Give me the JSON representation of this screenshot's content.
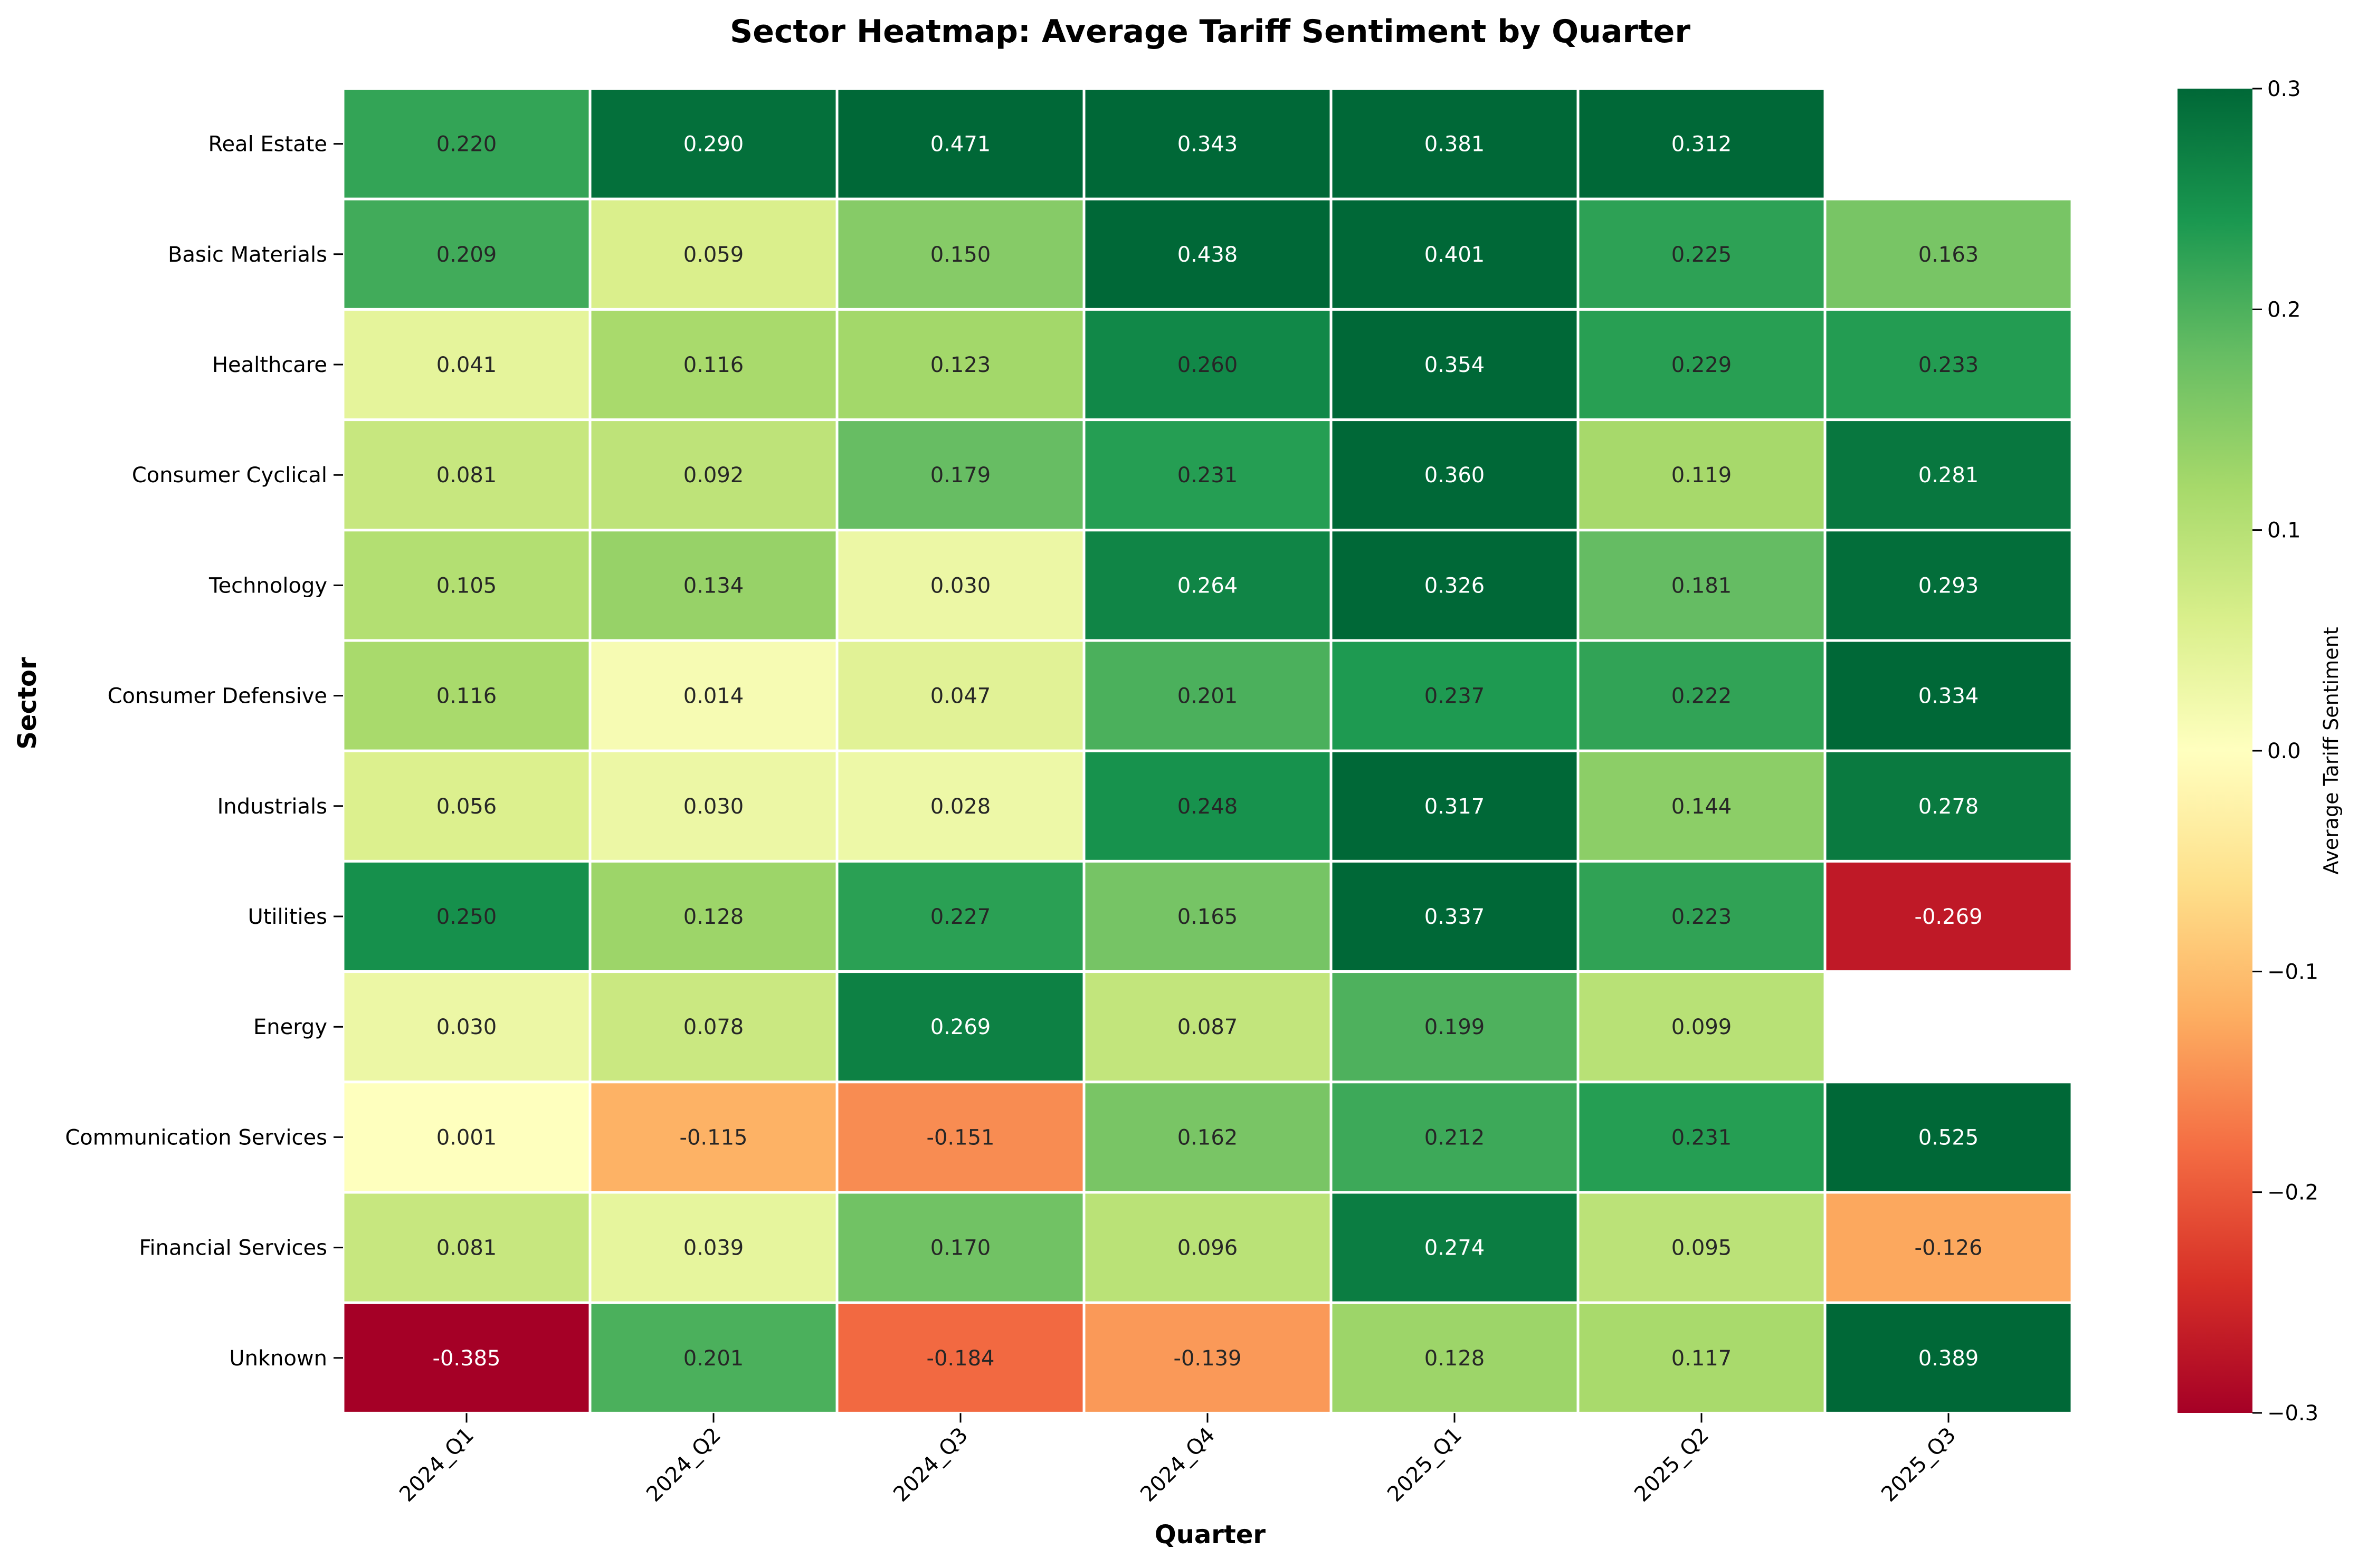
{
  "chart_data": {
    "type": "heatmap",
    "title": "Sector Heatmap: Average Tariff Sentiment by Quarter",
    "xlabel": "Quarter",
    "ylabel": "Sector",
    "x": [
      "2024_Q1",
      "2024_Q2",
      "2024_Q3",
      "2024_Q4",
      "2025_Q1",
      "2025_Q2",
      "2025_Q3"
    ],
    "y": [
      "Real Estate",
      "Basic Materials",
      "Healthcare",
      "Consumer Cyclical",
      "Technology",
      "Consumer Defensive",
      "Industrials",
      "Utilities",
      "Energy",
      "Communication Services",
      "Financial Services",
      "Unknown"
    ],
    "values": [
      [
        0.22,
        0.29,
        0.471,
        0.343,
        0.381,
        0.312,
        null
      ],
      [
        0.209,
        0.059,
        0.15,
        0.438,
        0.401,
        0.225,
        0.163
      ],
      [
        0.041,
        0.116,
        0.123,
        0.26,
        0.354,
        0.229,
        0.233
      ],
      [
        0.081,
        0.092,
        0.179,
        0.231,
        0.36,
        0.119,
        0.281
      ],
      [
        0.105,
        0.134,
        0.03,
        0.264,
        0.326,
        0.181,
        0.293
      ],
      [
        0.116,
        0.014,
        0.047,
        0.201,
        0.237,
        0.222,
        0.334
      ],
      [
        0.056,
        0.03,
        0.028,
        0.248,
        0.317,
        0.144,
        0.278
      ],
      [
        0.25,
        0.128,
        0.227,
        0.165,
        0.337,
        0.223,
        -0.269
      ],
      [
        0.03,
        0.078,
        0.269,
        0.087,
        0.199,
        0.099,
        null
      ],
      [
        0.001,
        -0.115,
        -0.151,
        0.162,
        0.212,
        0.231,
        0.525
      ],
      [
        0.081,
        0.039,
        0.17,
        0.096,
        0.274,
        0.095,
        -0.126
      ],
      [
        -0.385,
        0.201,
        -0.184,
        -0.139,
        0.128,
        0.117,
        0.389
      ]
    ],
    "cell_label_format": "3 decimals",
    "colormap": "RdYlGn",
    "vmin": -0.3,
    "vmax": 0.3,
    "colorbar": {
      "label": "Average Tariff Sentiment",
      "ticks": [
        0.3,
        0.2,
        0.1,
        0.0,
        -0.1,
        -0.2,
        -0.3
      ],
      "tick_labels": [
        "0.3",
        "0.2",
        "0.1",
        "0.0",
        "−0.1",
        "−0.2",
        "−0.3"
      ]
    },
    "grid": false,
    "missing_cells": "blank"
  }
}
